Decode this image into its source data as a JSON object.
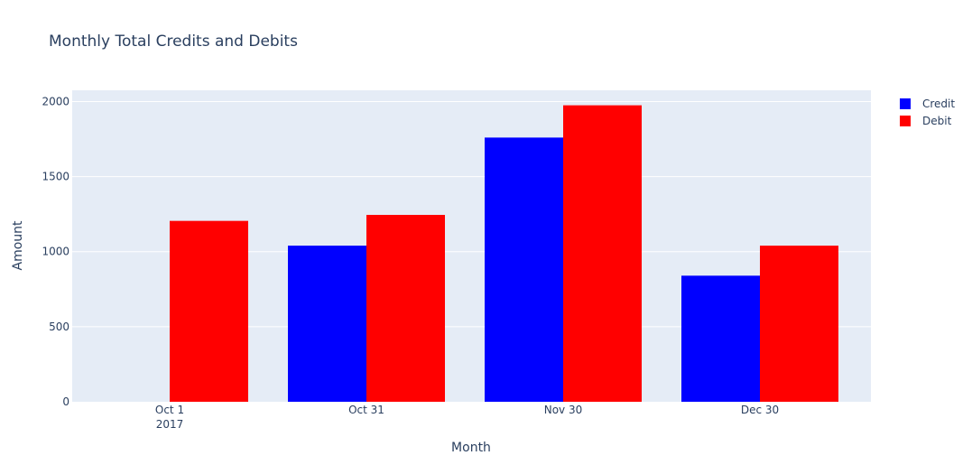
{
  "chart_data": {
    "type": "bar",
    "title": "Monthly Total Credits and Debits",
    "xlabel": "Month",
    "ylabel": "Amount",
    "x": [
      "2017-10-01",
      "2017-10-31",
      "2017-11-30",
      "2017-12-30"
    ],
    "x_tick_labels": [
      {
        "date": "2017-10-01",
        "line1": "Oct 1",
        "line2": "2017"
      },
      {
        "date": "2017-10-31",
        "line1": "Oct 31",
        "line2": ""
      },
      {
        "date": "2017-11-30",
        "line1": "Nov 30",
        "line2": ""
      },
      {
        "date": "2017-12-30",
        "line1": "Dec 30",
        "line2": ""
      }
    ],
    "ylim": [
      0,
      2075
    ],
    "y_ticks": [
      0,
      500,
      1000,
      1500,
      2000
    ],
    "grid": true,
    "legend_position": "top-right",
    "series": [
      {
        "name": "Credit",
        "color": "#0000ff",
        "values": [
          0,
          1040,
          1760,
          840
        ]
      },
      {
        "name": "Debit",
        "color": "#ff0000",
        "values": [
          1205,
          1245,
          1975,
          1040
        ]
      }
    ],
    "plot_background": "#e5ecf6",
    "gridline_color": "#ffffff"
  }
}
